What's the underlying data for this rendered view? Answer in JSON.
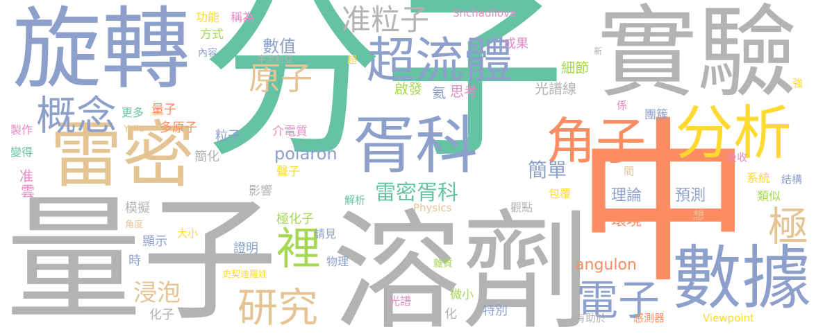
{
  "words": [
    {
      "text": "分子",
      "color": "#66c2a5"
    },
    {
      "text": "量子",
      "color": "#b3b3b3"
    },
    {
      "text": "溶劑",
      "color": "#b3b3b3"
    },
    {
      "text": "中",
      "color": "#fc8d62"
    },
    {
      "text": "實驗",
      "color": "#b3b3b3"
    },
    {
      "text": "旋轉",
      "color": "#8da0cb"
    },
    {
      "text": "雷密",
      "color": "#e5c494"
    },
    {
      "text": "胥科",
      "color": "#8da0cb"
    },
    {
      "text": "數據",
      "color": "#8da0cb"
    },
    {
      "text": "分析",
      "color": "#ffd92f"
    },
    {
      "text": "超流體",
      "color": "#8da0cb"
    },
    {
      "text": "角子",
      "color": "#fc8d62"
    },
    {
      "text": "概念",
      "color": "#8da0cb"
    },
    {
      "text": "研究",
      "color": "#e5c494"
    },
    {
      "text": "電子",
      "color": "#8da0cb"
    },
    {
      "text": "裡",
      "color": "#a6d854"
    },
    {
      "text": "極",
      "color": "#e5c494"
    },
    {
      "text": "原子",
      "color": "#e5c494"
    },
    {
      "text": "准粒子",
      "color": "#b3b3b3"
    },
    {
      "text": "雷密胥科",
      "color": "#66c2a5"
    },
    {
      "text": "簡單",
      "color": "#8da0cb"
    },
    {
      "text": "數值",
      "color": "#8da0cb"
    },
    {
      "text": "浸泡",
      "color": "#e5c494"
    },
    {
      "text": "angulon",
      "color": "#fc8d62"
    },
    {
      "text": "polaron",
      "color": "#8da0cb"
    },
    {
      "text": "理論",
      "color": "#8da0cb"
    },
    {
      "text": "預測",
      "color": "#8da0cb"
    },
    {
      "text": "環境",
      "color": "#fc8d62"
    },
    {
      "text": "思考",
      "color": "#e78ac3"
    },
    {
      "text": "氦",
      "color": "#8da0cb"
    },
    {
      "text": "啟發",
      "color": "#a6d854"
    },
    {
      "text": "細節",
      "color": "#a6d854"
    },
    {
      "text": "光譜線",
      "color": "#b3b3b3"
    },
    {
      "text": "成果",
      "color": "#e78ac3"
    },
    {
      "text": "超",
      "color": "#ffd92f"
    },
    {
      "text": "中尤利亞",
      "color": "#b3b3b3"
    },
    {
      "text": "Shchadilova",
      "color": "#e78ac3"
    },
    {
      "text": "功能",
      "color": "#ffd92f"
    },
    {
      "text": "稱為",
      "color": "#e78ac3"
    },
    {
      "text": "方式",
      "color": "#a6d854"
    },
    {
      "text": "內容",
      "color": "#8da0cb"
    },
    {
      "text": "更多",
      "color": "#66c2a5"
    },
    {
      "text": "量子",
      "color": "#fc8d62"
    },
    {
      "text": "多原子",
      "color": "#fc8d62"
    },
    {
      "text": "製作",
      "color": "#e78ac3"
    },
    {
      "text": "Yulia",
      "color": "#e5c494"
    },
    {
      "text": "變得",
      "color": "#66c2a5"
    },
    {
      "text": "准",
      "color": "#e78ac3"
    },
    {
      "text": "雲",
      "color": "#e78ac3"
    },
    {
      "text": "粒子",
      "color": "#8da0cb"
    },
    {
      "text": "簡化",
      "color": "#b3b3b3"
    },
    {
      "text": "介電質",
      "color": "#e78ac3"
    },
    {
      "text": "聲子",
      "color": "#ffd92f"
    },
    {
      "text": "影響",
      "color": "#b3b3b3"
    },
    {
      "text": "解析",
      "color": "#66c2a5"
    },
    {
      "text": "Physics",
      "color": "#e5c494"
    },
    {
      "text": "觀點",
      "color": "#b3b3b3"
    },
    {
      "text": "包覆",
      "color": "#ffd92f"
    },
    {
      "text": "模擬",
      "color": "#b3b3b3"
    },
    {
      "text": "角度",
      "color": "#e5c494"
    },
    {
      "text": "大小",
      "color": "#ffd92f"
    },
    {
      "text": "顯示",
      "color": "#8da0cb"
    },
    {
      "text": "極化子",
      "color": "#a6d854"
    },
    {
      "text": "請見",
      "color": "#8da0cb"
    },
    {
      "text": "證明",
      "color": "#8da0cb"
    },
    {
      "text": "時",
      "color": "#8da0cb"
    },
    {
      "text": "物理",
      "color": "#8da0cb"
    },
    {
      "text": "史契迪羅娃",
      "color": "#ffd92f"
    },
    {
      "text": "雜質",
      "color": "#a6d854"
    },
    {
      "text": "光譜",
      "color": "#e78ac3"
    },
    {
      "text": "微小",
      "color": "#a6d854"
    },
    {
      "text": "化子",
      "color": "#b3b3b3"
    },
    {
      "text": "化",
      "color": "#b3b3b3"
    },
    {
      "text": "特別",
      "color": "#8da0cb"
    },
    {
      "text": "有助於",
      "color": "#b3b3b3"
    },
    {
      "text": "感測器",
      "color": "#fc8d62"
    },
    {
      "text": "Viewpoint",
      "color": "#ffd92f"
    },
    {
      "text": "係",
      "color": "#e78ac3"
    },
    {
      "text": "團簇",
      "color": "#8da0cb"
    },
    {
      "text": "間",
      "color": "#e5c494"
    },
    {
      "text": "吸收",
      "color": "#e78ac3"
    },
    {
      "text": "系統",
      "color": "#ffd92f"
    },
    {
      "text": "結構",
      "color": "#8da0cb"
    },
    {
      "text": "類似",
      "color": "#a6d854"
    },
    {
      "text": "想",
      "color": "#e5c494"
    },
    {
      "text": "強",
      "color": "#ffd92f"
    },
    {
      "text": "新",
      "color": "#b3b3b3"
    }
  ]
}
